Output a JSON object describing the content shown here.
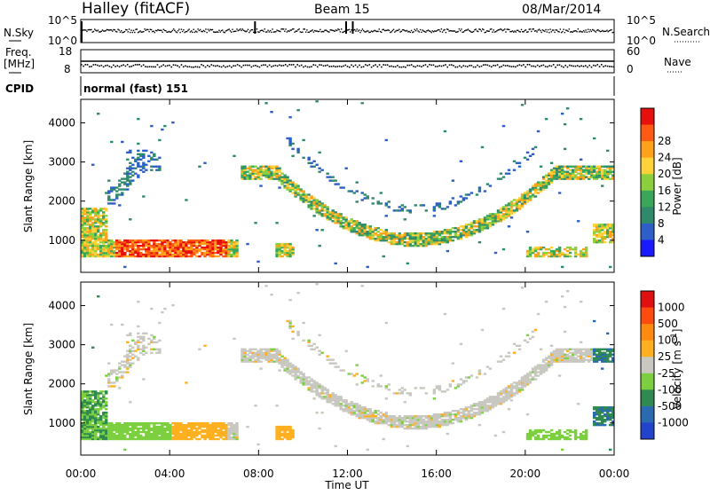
{
  "header": {
    "station": "Halley (fitACF)",
    "beam": "Beam 15",
    "date": "08/Mar/2014"
  },
  "strip_panels": {
    "nsky_label": "N.Sky",
    "nsearch_label": "N.Search",
    "nsky_ticks": [
      "10^5",
      "10^0"
    ],
    "nsearch_ticks": [
      "10^5",
      "10^0"
    ],
    "freq_label_line1": "Freq.",
    "freq_label_line2": "[MHz]",
    "freq_ticks": [
      "18",
      "8"
    ],
    "nave_label": "Nave",
    "nave_ticks": [
      "60",
      "0"
    ],
    "cpid_label": "CPID",
    "cpid_value": "normal (fast) 151"
  },
  "colors": {
    "power_scale": [
      "#1a1aff",
      "#2e5fc8",
      "#2f8a6c",
      "#39a65a",
      "#8ccf3e",
      "#ffd23a",
      "#ffa21a",
      "#ff5a14",
      "#e8100c"
    ],
    "velocity_scale": [
      "#2244cc",
      "#2a6ab0",
      "#2f8a50",
      "#7cd040",
      "#c8c8c0",
      "#ffb020",
      "#ff8a10",
      "#ff4a10",
      "#e01010"
    ]
  },
  "chart_data": [
    {
      "type": "heatmap",
      "name_printed": "",
      "ylabel": "Slant Range [km]",
      "ylim": [
        180,
        4600
      ],
      "xlim": [
        0,
        24
      ],
      "y_ticks": [
        "1000",
        "2000",
        "3000",
        "4000"
      ],
      "x_ticks": [
        "00:00",
        "04:00",
        "08:00",
        "12:00",
        "16:00",
        "20:00",
        "00:00"
      ],
      "colorbar_label": "Power [dB]",
      "colorbar_ticks": [
        "4",
        "8",
        "12",
        "16",
        "20",
        "24",
        "28"
      ]
    },
    {
      "type": "heatmap",
      "ylabel": "Slant Range [km]",
      "ylim": [
        180,
        4600
      ],
      "xlim": [
        0,
        24
      ],
      "y_ticks": [
        "1000",
        "2000",
        "3000",
        "4000"
      ],
      "x_ticks": [
        "00:00",
        "04:00",
        "08:00",
        "12:00",
        "16:00",
        "20:00",
        "00:00"
      ],
      "xlabel": "Time UT",
      "colorbar_label": "Velocity [m s-1]",
      "colorbar_ticks": [
        "1000",
        "500",
        "100",
        "25",
        "-25",
        "-100",
        "-500",
        "-1000"
      ]
    }
  ]
}
